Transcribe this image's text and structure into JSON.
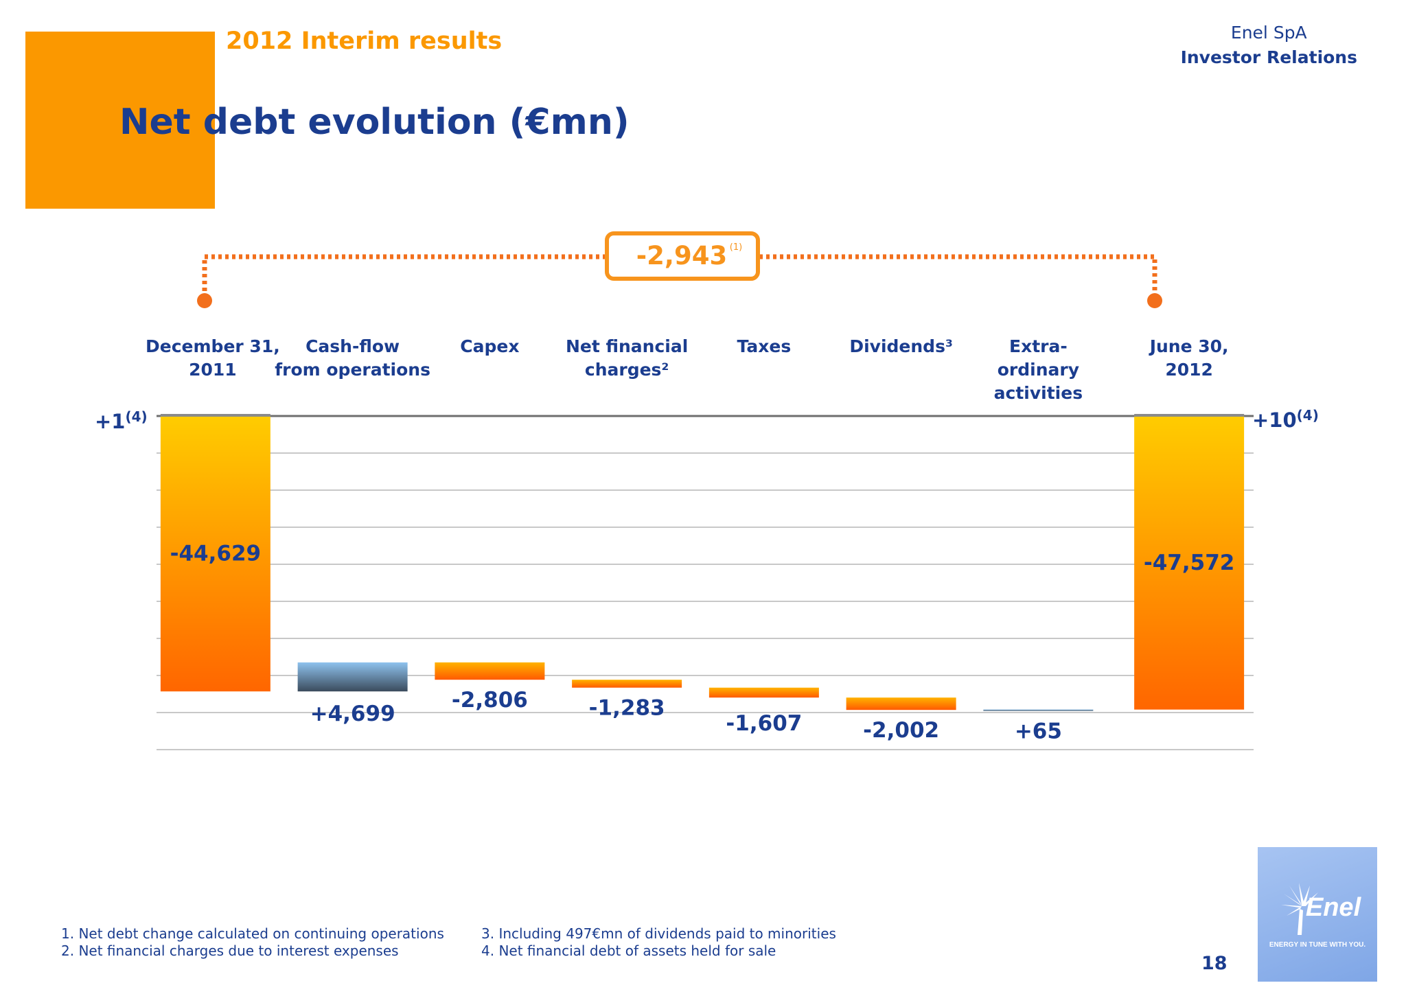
{
  "header": {
    "subtitle": "2012 Interim results",
    "title": "Net debt evolution (€mn)",
    "company": "Enel SpA",
    "department": "Investor Relations"
  },
  "chart_data": {
    "type": "bar",
    "subtype": "waterfall",
    "title": "Net debt evolution (€mn)",
    "categories": [
      [
        "December 31,",
        "2011"
      ],
      [
        "Cash-flow",
        "from operations"
      ],
      [
        "Capex"
      ],
      [
        "Net financial",
        "charges²"
      ],
      [
        "Taxes"
      ],
      [
        "Dividends³"
      ],
      [
        "Extra-",
        "ordinary",
        "activities"
      ],
      [
        "June 30,",
        "2012"
      ]
    ],
    "steps": [
      {
        "kind": "total",
        "value": -44629,
        "label": "-44,629"
      },
      {
        "kind": "delta",
        "value": 4699,
        "label": "+4,699"
      },
      {
        "kind": "delta",
        "value": -2806,
        "label": "-2,806"
      },
      {
        "kind": "delta",
        "value": -1283,
        "label": "-1,283"
      },
      {
        "kind": "delta",
        "value": -1607,
        "label": "-1,607"
      },
      {
        "kind": "delta",
        "value": -2002,
        "label": "-2,002"
      },
      {
        "kind": "delta",
        "value": 65,
        "label": "+65"
      },
      {
        "kind": "total",
        "value": -47572,
        "label": "-47,572"
      }
    ],
    "ylim": [
      -55000,
      0
    ],
    "grid": true,
    "total_change": {
      "label": "-2,943",
      "note": "(1)"
    },
    "side_notes": [
      {
        "text": "+1",
        "sup": "(4)"
      },
      {
        "text": "+10",
        "sup": "(4)"
      }
    ],
    "colors": {
      "total_top": "#ffcc00",
      "total_bottom": "#ff6600",
      "increase_top": "#8ec2ee",
      "increase_bottom": "#3b4b5c",
      "decrease_top": "#ffb300",
      "decrease_bottom": "#ff5a00",
      "text": "#1b3d8f",
      "bracket": "#f26f1c",
      "grid": "#c8c8c8"
    }
  },
  "footnotes": {
    "left": [
      "1. Net debt change calculated on continuing operations",
      "2. Net financial charges due to interest expenses"
    ],
    "right": [
      "3. Including 497€mn of dividends paid to minorities",
      "4. Net financial debt of assets held for sale"
    ]
  },
  "page_number": "18",
  "logo": {
    "wordmark": "Enel",
    "tagline": "ENERGY IN TUNE WITH YOU."
  }
}
